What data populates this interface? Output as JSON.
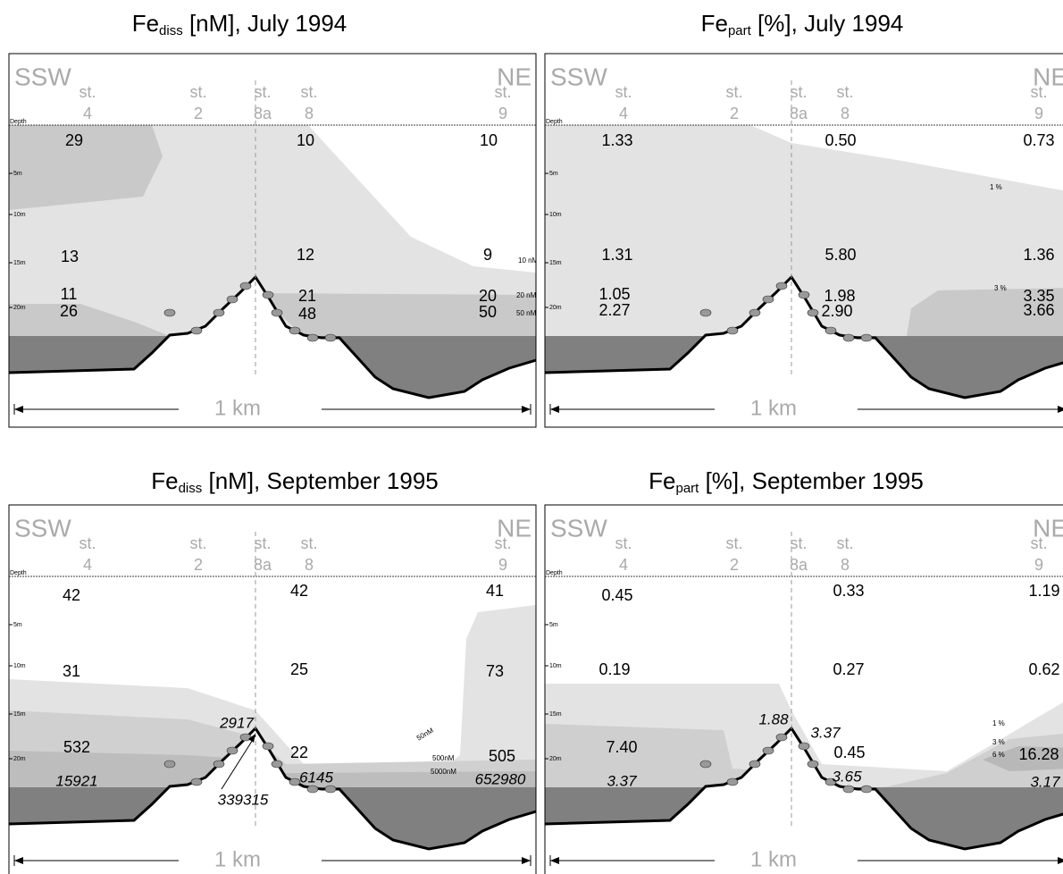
{
  "section": {
    "left": "SSW",
    "right": "NE",
    "station_prefix": "st.",
    "stations": [
      "4",
      "2",
      "8a",
      "8",
      "9"
    ],
    "depth_label": "Depth",
    "depth_ticks": [
      "5m",
      "10m",
      "15m",
      "20m"
    ],
    "scale": "1 km"
  },
  "panels": [
    {
      "title": {
        "base": "Fe",
        "sub": "diss",
        "rest": " [nM], July 1994"
      },
      "labels": [
        "29",
        "10",
        "10",
        "13",
        "12",
        "9",
        "10 nM",
        "11",
        "26",
        "21",
        "48",
        "20",
        "50",
        "20 nM",
        "50 nM"
      ]
    },
    {
      "title": {
        "base": "Fe",
        "sub": "part",
        "rest": " [%], July 1994"
      },
      "labels": [
        "1.33",
        "0.50",
        "0.73",
        "1 %",
        "1.31",
        "5.80",
        "1.36",
        "3 %",
        "1.05",
        "2.27",
        "1.98",
        "2.90",
        "3.35",
        "3.66"
      ]
    },
    {
      "title": {
        "base": "Fe",
        "sub": "diss",
        "rest": " [nM], September 1995"
      },
      "labels": [
        "42",
        "42",
        "41",
        "31",
        "25",
        "73",
        "2917",
        "532",
        "22",
        "505",
        "50nM",
        "500nM",
        "5000nM",
        "15921",
        "6145",
        "652980",
        "339315"
      ]
    },
    {
      "title": {
        "base": "Fe",
        "sub": "part",
        "rest": " [%], September 1995"
      },
      "labels": [
        "0.45",
        "0.33",
        "1.19",
        "0.19",
        "0.27",
        "0.62",
        "1.88",
        "3.37",
        "0.45",
        "1 %",
        "3 %",
        "6 %",
        "7.40",
        "16.28",
        "3.37",
        "3.65",
        "3.17"
      ]
    }
  ]
}
